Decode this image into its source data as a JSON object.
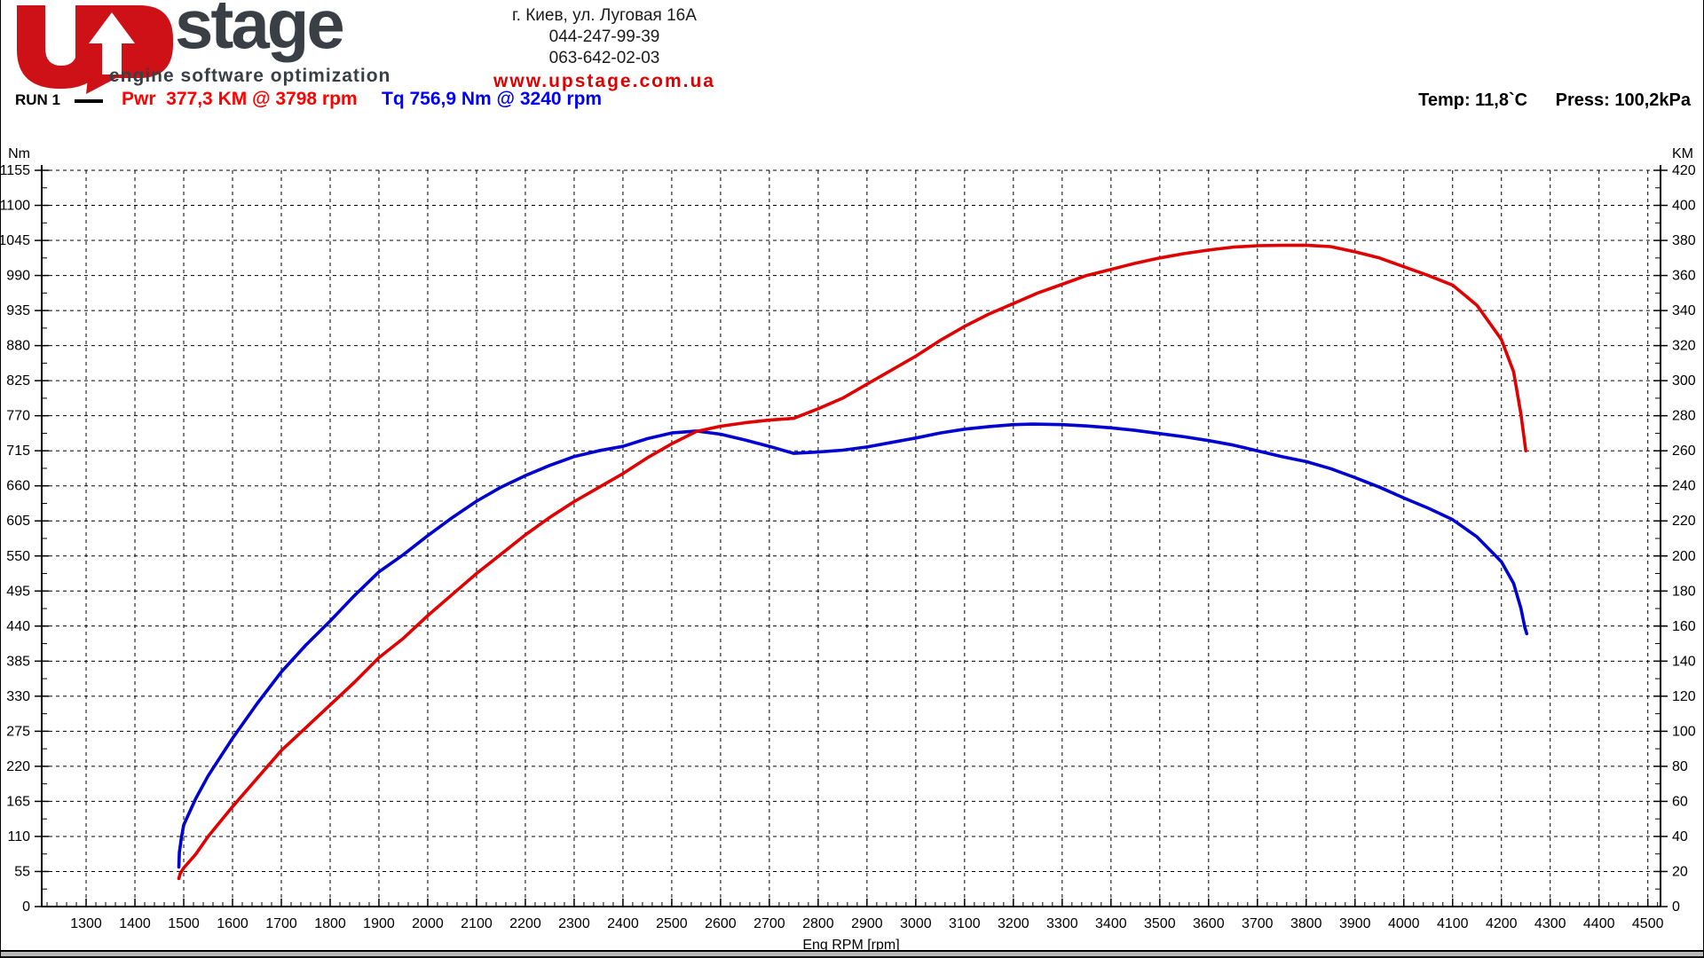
{
  "header": {
    "logo": {
      "brand": "stage",
      "tagline": "engine software optimization",
      "red": "#cd1116",
      "dark": "#3a3f45"
    },
    "contact": {
      "address": "г. Киев, ул. Луговая 16А",
      "phone1": "044-247-99-39",
      "phone2": "063-642-02-03",
      "website": "www.upstage.com.ua",
      "website_color": "#e00000"
    },
    "run": {
      "label": "RUN 1",
      "power_reading": "Pwr  377,3 KM @ 3798 rpm",
      "power_color": "#ff0000",
      "torque_reading": "Tq 756,9 Nm @ 3240 rpm",
      "torque_color": "#0000ff"
    },
    "conditions": {
      "temperature": "Temp: 11,8`C",
      "pressure": "Press: 100,2kPa"
    }
  },
  "chart_data": {
    "type": "line",
    "grid": "dashed",
    "x_axis": {
      "label": "Eng RPM [rpm]",
      "min": 1209,
      "max": 4526,
      "major_ticks": [
        1300,
        1400,
        1500,
        1600,
        1700,
        1800,
        1900,
        2000,
        2100,
        2200,
        2300,
        2400,
        2500,
        2600,
        2700,
        2800,
        2900,
        3000,
        3100,
        3200,
        3300,
        3400,
        3500,
        3600,
        3700,
        3800,
        3900,
        4000,
        4100,
        4200,
        4300,
        4400,
        4500
      ],
      "minor_step": 20
    },
    "y_left": {
      "label": "Nm",
      "min": 0,
      "max": 1155,
      "ticks": [
        0,
        55,
        110,
        165,
        220,
        275,
        330,
        385,
        440,
        495,
        550,
        605,
        660,
        715,
        770,
        825,
        880,
        935,
        990,
        1045,
        1100,
        1155
      ]
    },
    "y_right": {
      "label": "KM",
      "min": 0,
      "max": 420,
      "ticks": [
        0,
        20,
        40,
        60,
        80,
        100,
        120,
        140,
        160,
        180,
        200,
        220,
        240,
        260,
        280,
        300,
        320,
        340,
        360,
        380,
        400,
        420
      ]
    },
    "series": [
      {
        "name": "Torque",
        "unit": "Nm",
        "axis": "left",
        "color": "#0000d0",
        "peak": {
          "value": 756.9,
          "rpm": 3240
        },
        "points": [
          [
            1490,
            62
          ],
          [
            1491,
            85
          ],
          [
            1495,
            107
          ],
          [
            1500,
            128
          ],
          [
            1525,
            170
          ],
          [
            1550,
            205
          ],
          [
            1600,
            264
          ],
          [
            1650,
            318
          ],
          [
            1700,
            368
          ],
          [
            1750,
            410
          ],
          [
            1800,
            448
          ],
          [
            1850,
            488
          ],
          [
            1900,
            525
          ],
          [
            1950,
            552
          ],
          [
            2000,
            582
          ],
          [
            2050,
            610
          ],
          [
            2100,
            636
          ],
          [
            2150,
            658
          ],
          [
            2200,
            676
          ],
          [
            2250,
            692
          ],
          [
            2300,
            706
          ],
          [
            2350,
            715
          ],
          [
            2400,
            722
          ],
          [
            2450,
            734
          ],
          [
            2500,
            743
          ],
          [
            2550,
            746
          ],
          [
            2600,
            741
          ],
          [
            2650,
            732
          ],
          [
            2700,
            722
          ],
          [
            2750,
            711
          ],
          [
            2800,
            713
          ],
          [
            2850,
            716
          ],
          [
            2900,
            721
          ],
          [
            2950,
            728
          ],
          [
            3000,
            735
          ],
          [
            3050,
            743
          ],
          [
            3100,
            749
          ],
          [
            3150,
            753
          ],
          [
            3200,
            756
          ],
          [
            3240,
            756.9
          ],
          [
            3300,
            756
          ],
          [
            3350,
            754
          ],
          [
            3400,
            751
          ],
          [
            3450,
            747
          ],
          [
            3500,
            742
          ],
          [
            3550,
            737
          ],
          [
            3600,
            731
          ],
          [
            3650,
            724
          ],
          [
            3700,
            715
          ],
          [
            3750,
            706
          ],
          [
            3800,
            698
          ],
          [
            3850,
            687
          ],
          [
            3900,
            673
          ],
          [
            3950,
            658
          ],
          [
            4000,
            641
          ],
          [
            4050,
            625
          ],
          [
            4100,
            607
          ],
          [
            4150,
            580
          ],
          [
            4200,
            541
          ],
          [
            4225,
            507
          ],
          [
            4240,
            468
          ],
          [
            4248,
            438
          ],
          [
            4252,
            428
          ]
        ]
      },
      {
        "name": "Power",
        "unit": "KM",
        "axis": "right",
        "color": "#e00000",
        "peak": {
          "value": 377.3,
          "rpm": 3798
        },
        "points": [
          [
            1490,
            16
          ],
          [
            1493,
            19
          ],
          [
            1500,
            22
          ],
          [
            1525,
            30
          ],
          [
            1550,
            40
          ],
          [
            1600,
            57
          ],
          [
            1650,
            73
          ],
          [
            1700,
            89
          ],
          [
            1750,
            102
          ],
          [
            1800,
            115
          ],
          [
            1850,
            128
          ],
          [
            1900,
            142
          ],
          [
            1950,
            153
          ],
          [
            2000,
            166
          ],
          [
            2050,
            178
          ],
          [
            2100,
            190
          ],
          [
            2150,
            201
          ],
          [
            2200,
            212
          ],
          [
            2250,
            222
          ],
          [
            2300,
            231
          ],
          [
            2350,
            239
          ],
          [
            2400,
            247
          ],
          [
            2450,
            256
          ],
          [
            2500,
            264
          ],
          [
            2550,
            271
          ],
          [
            2600,
            274
          ],
          [
            2650,
            276
          ],
          [
            2700,
            277.5
          ],
          [
            2750,
            278.5
          ],
          [
            2800,
            284
          ],
          [
            2850,
            290
          ],
          [
            2900,
            298
          ],
          [
            2950,
            306
          ],
          [
            3000,
            314
          ],
          [
            3050,
            323
          ],
          [
            3100,
            331
          ],
          [
            3150,
            338
          ],
          [
            3200,
            344
          ],
          [
            3250,
            350
          ],
          [
            3300,
            355
          ],
          [
            3350,
            360
          ],
          [
            3400,
            363.5
          ],
          [
            3450,
            367
          ],
          [
            3500,
            370
          ],
          [
            3550,
            372.5
          ],
          [
            3600,
            374.5
          ],
          [
            3650,
            376.2
          ],
          [
            3700,
            377
          ],
          [
            3750,
            377.2
          ],
          [
            3798,
            377.3
          ],
          [
            3850,
            376.5
          ],
          [
            3900,
            373.5
          ],
          [
            3950,
            370
          ],
          [
            4000,
            365
          ],
          [
            4050,
            360
          ],
          [
            4100,
            354.5
          ],
          [
            4150,
            343
          ],
          [
            4200,
            323.5
          ],
          [
            4225,
            305
          ],
          [
            4240,
            281
          ],
          [
            4250,
            260
          ]
        ]
      }
    ]
  }
}
